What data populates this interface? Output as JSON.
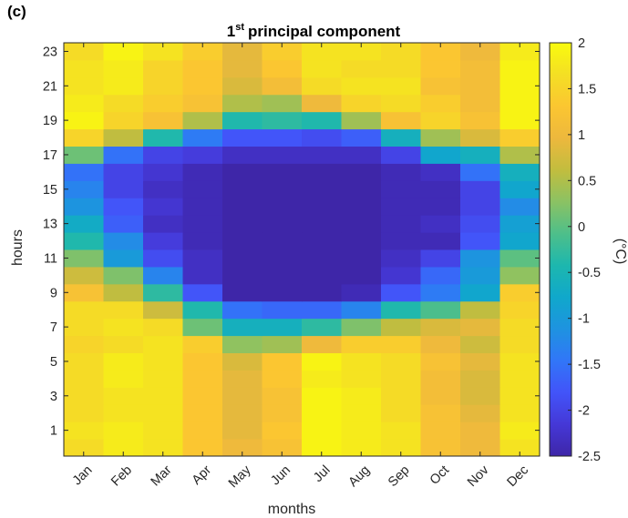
{
  "panel_label": "(c)",
  "chart_data": {
    "type": "heatmap",
    "title": "1st principal component",
    "title_parts": {
      "ordinal": "1",
      "superscript": "st",
      "rest": "principal component"
    },
    "xlabel": "months",
    "ylabel": "hours",
    "x": [
      "Jan",
      "Feb",
      "Mar",
      "Apr",
      "May",
      "Jun",
      "Jul",
      "Aug",
      "Sep",
      "Oct",
      "Nov",
      "Dec"
    ],
    "y": [
      0,
      1,
      2,
      3,
      4,
      5,
      6,
      7,
      8,
      9,
      10,
      11,
      12,
      13,
      14,
      15,
      16,
      17,
      18,
      19,
      20,
      21,
      22,
      23
    ],
    "ytick_labels": [
      "1",
      "3",
      "5",
      "7",
      "9",
      "11",
      "13",
      "15",
      "17",
      "19",
      "21",
      "23"
    ],
    "colorbar": {
      "label": "(°C)",
      "range": [
        -2.5,
        2
      ],
      "ticks": [
        "2",
        "1.5",
        "1",
        "0.5",
        "0",
        "-0.5",
        "-1",
        "-1.5",
        "-2",
        "-2.5"
      ],
      "tick_values": [
        2,
        1.5,
        1,
        0.5,
        0,
        -0.5,
        -1,
        -1.5,
        -2,
        -2.5
      ],
      "colormap": "parula"
    },
    "values": [
      [
        1.6,
        1.8,
        1.7,
        1.3,
        1.0,
        1.2,
        1.9,
        1.8,
        1.7,
        1.2,
        1.0,
        1.7
      ],
      [
        1.7,
        1.8,
        1.7,
        1.3,
        0.9,
        1.3,
        1.9,
        1.8,
        1.7,
        1.2,
        1.0,
        1.8
      ],
      [
        1.6,
        1.7,
        1.7,
        1.3,
        0.9,
        1.2,
        1.9,
        1.8,
        1.6,
        1.2,
        0.9,
        1.7
      ],
      [
        1.6,
        1.7,
        1.7,
        1.3,
        0.9,
        1.2,
        1.9,
        1.8,
        1.6,
        1.1,
        0.8,
        1.7
      ],
      [
        1.6,
        1.8,
        1.7,
        1.3,
        0.9,
        1.3,
        1.8,
        1.7,
        1.6,
        1.1,
        0.8,
        1.7
      ],
      [
        1.6,
        1.8,
        1.7,
        1.3,
        0.8,
        1.3,
        1.9,
        1.7,
        1.6,
        1.2,
        0.9,
        1.7
      ],
      [
        1.5,
        1.6,
        1.7,
        1.4,
        0.3,
        0.4,
        1.0,
        1.4,
        1.4,
        1.0,
        0.7,
        1.6
      ],
      [
        1.6,
        1.7,
        1.6,
        0.1,
        -0.6,
        -0.6,
        -0.3,
        0.2,
        0.6,
        0.8,
        0.9,
        1.6
      ],
      [
        1.6,
        1.6,
        0.7,
        -0.4,
        -1.5,
        -1.6,
        -1.6,
        -1.3,
        -0.4,
        -0.1,
        0.6,
        1.5
      ],
      [
        1.2,
        0.6,
        -0.3,
        -1.8,
        -2.5,
        -2.5,
        -2.5,
        -2.4,
        -1.8,
        -1.4,
        -0.8,
        1.4
      ],
      [
        0.7,
        0.2,
        -1.3,
        -2.3,
        -2.5,
        -2.5,
        -2.5,
        -2.5,
        -2.2,
        -1.6,
        -1.0,
        0.3
      ],
      [
        0.2,
        -1.0,
        -1.9,
        -2.3,
        -2.5,
        -2.5,
        -2.5,
        -2.5,
        -2.3,
        -2.0,
        -1.1,
        0.0
      ],
      [
        -0.4,
        -1.2,
        -2.1,
        -2.4,
        -2.5,
        -2.5,
        -2.5,
        -2.5,
        -2.4,
        -2.4,
        -1.8,
        -0.8
      ],
      [
        -0.7,
        -1.7,
        -2.3,
        -2.4,
        -2.5,
        -2.5,
        -2.5,
        -2.5,
        -2.4,
        -2.3,
        -1.9,
        -0.9
      ],
      [
        -1.1,
        -1.8,
        -2.2,
        -2.4,
        -2.5,
        -2.5,
        -2.5,
        -2.5,
        -2.4,
        -2.4,
        -2.0,
        -1.2
      ],
      [
        -1.3,
        -2.0,
        -2.3,
        -2.4,
        -2.5,
        -2.5,
        -2.5,
        -2.5,
        -2.4,
        -2.4,
        -2.0,
        -0.8
      ],
      [
        -1.5,
        -2.0,
        -2.2,
        -2.4,
        -2.5,
        -2.5,
        -2.5,
        -2.5,
        -2.4,
        -2.3,
        -1.5,
        -0.6
      ],
      [
        0.1,
        -1.5,
        -2.0,
        -2.1,
        -2.3,
        -2.3,
        -2.3,
        -2.3,
        -2.0,
        -0.8,
        -0.6,
        0.5
      ],
      [
        1.5,
        0.6,
        -0.4,
        -1.4,
        -1.8,
        -1.8,
        -1.9,
        -1.7,
        -0.6,
        0.4,
        0.8,
        1.4
      ],
      [
        1.9,
        1.5,
        1.2,
        0.5,
        -0.4,
        -0.3,
        -0.4,
        0.4,
        1.2,
        1.5,
        1.2,
        1.9
      ],
      [
        1.8,
        1.6,
        1.4,
        1.2,
        0.5,
        0.4,
        1.0,
        1.5,
        1.6,
        1.4,
        1.1,
        1.9
      ],
      [
        1.7,
        1.8,
        1.5,
        1.3,
        0.8,
        1.1,
        1.6,
        1.7,
        1.7,
        1.2,
        1.1,
        1.9
      ],
      [
        1.7,
        1.8,
        1.5,
        1.3,
        0.9,
        1.3,
        1.7,
        1.6,
        1.6,
        1.3,
        1.1,
        1.9
      ],
      [
        1.6,
        1.9,
        1.7,
        1.4,
        0.9,
        1.4,
        1.7,
        1.7,
        1.6,
        1.3,
        1.0,
        1.8
      ]
    ]
  }
}
